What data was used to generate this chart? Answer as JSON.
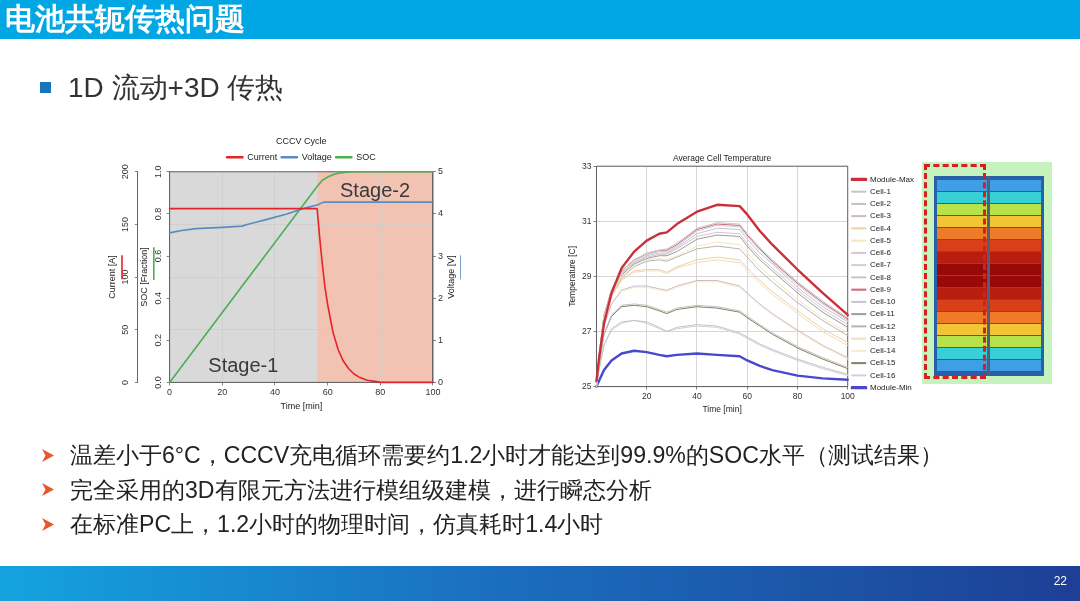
{
  "chart_data": [
    {
      "type": "other",
      "title": "电池共轭传热问题",
      "subtitle": "1D 流动+3D 传热"
    },
    {
      "type": "line",
      "title": "CCCV Cycle",
      "xlabel": "Time [min]",
      "ylabel": "Current [A]",
      "y2label": "SOC [Fraction]",
      "y3label": "Voltage [V]",
      "xlim": [
        0,
        100
      ],
      "xticks": [
        0,
        20,
        40,
        60,
        80,
        100
      ],
      "ylim": [
        0,
        200
      ],
      "yticks": [
        0,
        50,
        100,
        150,
        200
      ],
      "y2lim": [
        0,
        1
      ],
      "y2ticks": [
        {
          "value": 0,
          "label": "0.0"
        },
        0.2,
        0.4,
        0.6,
        0.8,
        {
          "value": 1,
          "label": "1.0"
        }
      ],
      "y3lim": [
        0,
        5
      ],
      "y3ticks": [
        0,
        1,
        2,
        3,
        4,
        5
      ],
      "grid": true,
      "legend": "top",
      "bands": [
        {
          "axis": "x",
          "from": 0,
          "to": 56,
          "label": "Stage-1",
          "color": "#d9d9d9"
        },
        {
          "axis": "x",
          "from": 56,
          "to": 100,
          "label": "Stage-2",
          "color": "#f2c2b2"
        }
      ],
      "series": [
        {
          "name": "Current",
          "color": "#e3242b",
          "x": [
            0,
            56,
            57,
            58,
            59,
            60,
            62,
            64,
            66,
            68,
            70,
            72,
            75,
            78,
            80,
            100
          ],
          "values": [
            165,
            165,
            137,
            112,
            90,
            74,
            48,
            31,
            20,
            13,
            8,
            5,
            2,
            1,
            0,
            0
          ]
        },
        {
          "name": "Voltage",
          "color": "#5b8bbd",
          "axis": "y3",
          "x": [
            0,
            4,
            10,
            20,
            27.5,
            29.5,
            37,
            44.5,
            52,
            56,
            58.5,
            100
          ],
          "values": [
            3.55,
            3.6,
            3.65,
            3.68,
            3.71,
            3.75,
            3.87,
            4.0,
            4.15,
            4.21,
            4.28,
            4.28
          ]
        },
        {
          "name": "SOC",
          "color": "#4caf50",
          "axis": "y2",
          "x": [
            0,
            56,
            58,
            60,
            62,
            64,
            67,
            70,
            100
          ],
          "values": [
            0,
            0.93,
            0.96,
            0.975,
            0.986,
            0.993,
            0.998,
            1,
            1
          ]
        }
      ]
    },
    {
      "type": "line",
      "title": "Average Cell Temperature",
      "xlabel": "Time [min]",
      "ylabel": "Temperature [C]",
      "xlim": [
        0,
        100
      ],
      "xticks": [
        20,
        40,
        60,
        80,
        100
      ],
      "ylim": [
        25,
        33
      ],
      "yticks": [
        25,
        27,
        29,
        31,
        33
      ],
      "grid": true,
      "legend": "right",
      "x": [
        0,
        1,
        3,
        6,
        10,
        15,
        20,
        25,
        28,
        32,
        40,
        48,
        57,
        60,
        65,
        70,
        80,
        90,
        100
      ],
      "series": [
        {
          "name": "Module-Max",
          "color": "#c8303a",
          "values": [
            25.2,
            26.0,
            27.3,
            28.4,
            29.3,
            29.9,
            30.3,
            30.55,
            30.6,
            30.9,
            31.35,
            31.6,
            31.55,
            31.25,
            30.65,
            30.15,
            29.25,
            28.4,
            27.6
          ]
        },
        {
          "name": "Cell-1",
          "color": "#c4c4c4",
          "values": [
            25.0,
            25.6,
            26.5,
            27.1,
            27.35,
            27.4,
            27.35,
            27.15,
            27.0,
            27.15,
            27.25,
            27.2,
            26.95,
            26.8,
            26.55,
            26.35,
            26.0,
            25.7,
            25.45
          ]
        },
        {
          "name": "Cell-2",
          "color": "#c0c0c0",
          "values": [
            25.0,
            25.8,
            26.9,
            27.6,
            27.95,
            28.0,
            27.95,
            27.8,
            27.7,
            27.85,
            27.95,
            27.9,
            27.75,
            27.55,
            27.25,
            26.95,
            26.45,
            26.05,
            25.7
          ]
        },
        {
          "name": "Cell-3",
          "color": "#cdb8c4",
          "values": [
            25.0,
            25.9,
            27.2,
            28.0,
            28.5,
            28.65,
            28.65,
            28.55,
            28.5,
            28.65,
            28.85,
            28.85,
            28.65,
            28.4,
            28.0,
            27.65,
            27.05,
            26.5,
            26.05
          ]
        },
        {
          "name": "Cell-4",
          "color": "#f0cfa0",
          "values": [
            25.0,
            26.0,
            27.4,
            28.3,
            28.9,
            29.2,
            29.25,
            29.25,
            29.15,
            29.35,
            29.6,
            29.7,
            29.6,
            29.3,
            28.85,
            28.45,
            27.75,
            27.1,
            26.6
          ]
        },
        {
          "name": "Cell-5",
          "color": "#f6e6b8",
          "values": [
            25.0,
            26.0,
            27.5,
            28.4,
            29.0,
            29.4,
            29.6,
            29.65,
            29.6,
            29.75,
            30.1,
            30.25,
            30.15,
            29.85,
            29.35,
            28.95,
            28.15,
            27.5,
            26.95
          ]
        },
        {
          "name": "Cell-6",
          "color": "#d4c4d0",
          "values": [
            25.0,
            26.0,
            27.5,
            28.4,
            29.1,
            29.5,
            29.7,
            29.8,
            29.8,
            30.0,
            30.45,
            30.6,
            30.55,
            30.2,
            29.7,
            29.3,
            28.5,
            27.8,
            27.25
          ]
        },
        {
          "name": "Cell-7",
          "color": "#cfcfcf",
          "values": [
            25.0,
            26.1,
            27.5,
            28.5,
            29.15,
            29.55,
            29.8,
            29.9,
            29.9,
            30.1,
            30.65,
            30.85,
            30.8,
            30.45,
            29.95,
            29.5,
            28.7,
            28.0,
            27.4
          ]
        },
        {
          "name": "Cell-8",
          "color": "#c6c6c6",
          "values": [
            25.0,
            26.1,
            27.6,
            28.5,
            29.2,
            29.6,
            29.85,
            29.95,
            30.0,
            30.2,
            30.75,
            30.95,
            30.9,
            30.55,
            30.05,
            29.6,
            28.8,
            28.1,
            27.5
          ]
        },
        {
          "name": "Cell-9",
          "color": "#c86878",
          "values": [
            25.0,
            26.1,
            27.6,
            28.5,
            29.2,
            29.6,
            29.8,
            29.95,
            29.95,
            30.15,
            30.7,
            30.9,
            30.85,
            30.5,
            30.0,
            29.55,
            28.75,
            28.05,
            27.45
          ]
        },
        {
          "name": "Cell-10",
          "color": "#c4c4d8",
          "values": [
            25.0,
            26.0,
            27.5,
            28.4,
            29.1,
            29.5,
            29.75,
            29.85,
            29.85,
            30.05,
            30.55,
            30.75,
            30.7,
            30.35,
            29.85,
            29.45,
            28.6,
            27.9,
            27.35
          ]
        },
        {
          "name": "Cell-11",
          "color": "#9c9c9c",
          "values": [
            25.0,
            26.0,
            27.5,
            28.4,
            29.05,
            29.45,
            29.65,
            29.75,
            29.75,
            29.9,
            30.35,
            30.5,
            30.45,
            30.1,
            29.6,
            29.2,
            28.4,
            27.7,
            27.15
          ]
        },
        {
          "name": "Cell-12",
          "color": "#b4b4c0",
          "values": [
            25.0,
            26.0,
            27.4,
            28.3,
            28.95,
            29.35,
            29.55,
            29.6,
            29.55,
            29.7,
            30.0,
            30.1,
            30.0,
            29.7,
            29.2,
            28.8,
            28.05,
            27.4,
            26.85
          ]
        },
        {
          "name": "Cell-13",
          "color": "#f0dcc0",
          "values": [
            25.0,
            26.0,
            27.4,
            28.25,
            28.85,
            29.15,
            29.2,
            29.2,
            29.1,
            29.3,
            29.5,
            29.6,
            29.5,
            29.2,
            28.75,
            28.35,
            27.65,
            27.0,
            26.5
          ]
        },
        {
          "name": "Cell-14",
          "color": "#f5ecc8",
          "values": [
            25.0,
            25.9,
            27.2,
            28.0,
            28.45,
            28.6,
            28.6,
            28.5,
            28.45,
            28.6,
            28.8,
            28.8,
            28.6,
            28.35,
            27.95,
            27.6,
            27.0,
            26.45,
            26.0
          ]
        },
        {
          "name": "Cell-15",
          "color": "#8a7f62",
          "values": [
            25.0,
            25.8,
            26.9,
            27.55,
            27.9,
            27.95,
            27.9,
            27.75,
            27.65,
            27.8,
            27.9,
            27.85,
            27.7,
            27.5,
            27.2,
            26.9,
            26.4,
            26.0,
            25.65
          ]
        },
        {
          "name": "Cell-16",
          "color": "#d8cce0",
          "values": [
            25.0,
            25.6,
            26.5,
            27.05,
            27.3,
            27.4,
            27.3,
            27.1,
            27.0,
            27.1,
            27.2,
            27.15,
            26.9,
            26.75,
            26.5,
            26.3,
            25.95,
            25.65,
            25.4
          ]
        },
        {
          "name": "Module-Min",
          "color": "#4848d0",
          "values": [
            25.0,
            25.2,
            25.6,
            25.95,
            26.2,
            26.3,
            26.25,
            26.15,
            26.1,
            26.15,
            26.2,
            26.15,
            26.1,
            25.95,
            25.75,
            25.6,
            25.4,
            25.3,
            25.25
          ]
        }
      ]
    },
    {
      "type": "other",
      "annotations": [
        "温差小于6°C，CCCV充电循环需要约1.2小时才能达到99.9%的SOC水平（测试结果）",
        "完全采用的3D有限元方法进行模组级建模，进行瞬态分析",
        "在标准PC上，1.2小时的物理时间，仿真耗时1.4小时"
      ]
    },
    {
      "type": "other",
      "annotations": [
        "22"
      ]
    }
  ]
}
